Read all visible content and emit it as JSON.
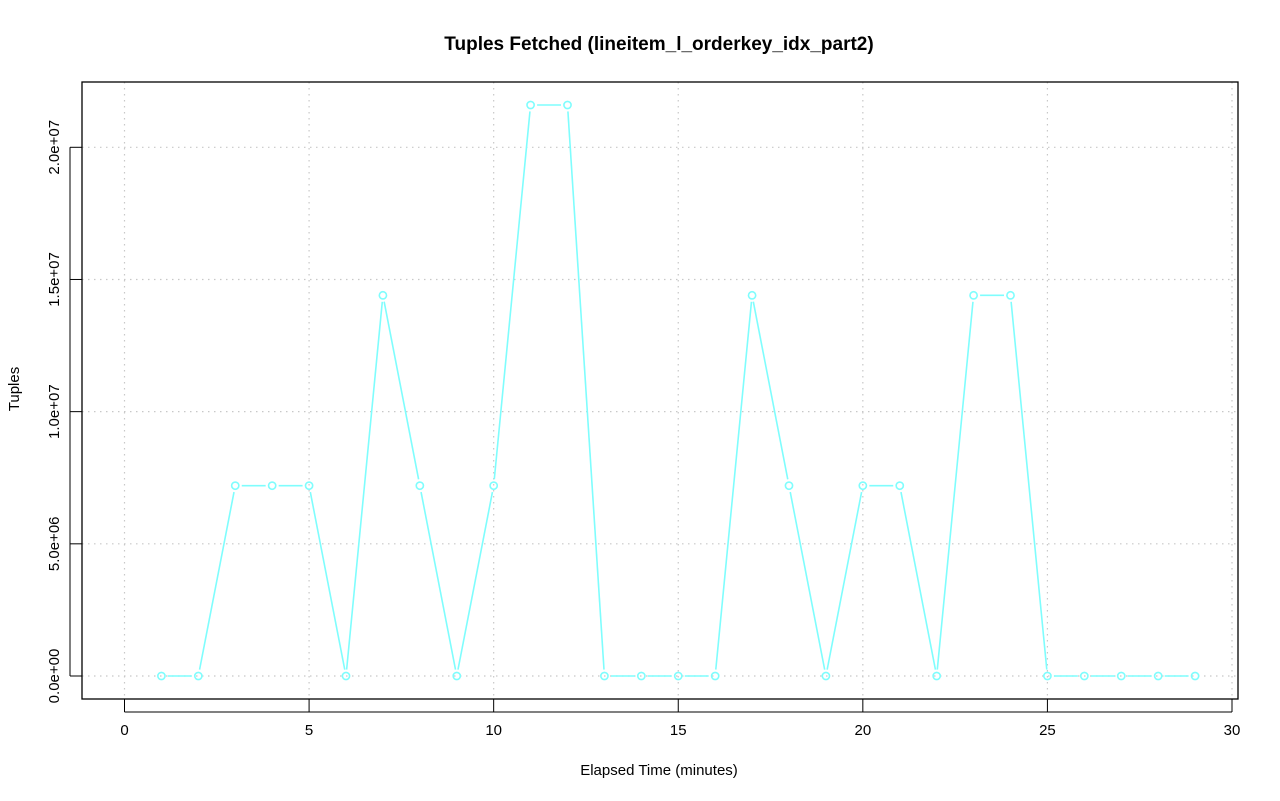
{
  "chart_data": {
    "type": "line",
    "title": "Tuples Fetched (lineitem_l_orderkey_idx_part2)",
    "xlabel": "Elapsed Time (minutes)",
    "ylabel": "Tuples",
    "xlim": [
      0,
      30
    ],
    "ylim": [
      0,
      21600000
    ],
    "x_ticks": [
      0,
      5,
      10,
      15,
      20,
      25,
      30
    ],
    "x_tick_labels": [
      "0",
      "5",
      "10",
      "15",
      "20",
      "25",
      "30"
    ],
    "y_ticks": [
      0,
      5000000,
      10000000,
      15000000,
      20000000
    ],
    "y_tick_labels": [
      "0.0e+00",
      "5.0e+06",
      "1.0e+07",
      "1.5e+07",
      "2.0e+07"
    ],
    "grid": true,
    "series": [
      {
        "color": "#7ffdfd",
        "marker": "open-circle",
        "x": [
          1,
          2,
          3,
          4,
          5,
          6,
          7,
          8,
          9,
          10,
          11,
          12,
          13,
          14,
          15,
          16,
          17,
          18,
          19,
          20,
          21,
          22,
          23,
          24,
          25,
          26,
          27,
          28,
          29
        ],
        "values": [
          0,
          0,
          7200000,
          7200000,
          7200000,
          0,
          14400000,
          7200000,
          0,
          7200000,
          21600000,
          21600000,
          0,
          0,
          0,
          0,
          14400000,
          7200000,
          0,
          7200000,
          7200000,
          0,
          14400000,
          14400000,
          0,
          0,
          0,
          0,
          0
        ]
      }
    ]
  }
}
